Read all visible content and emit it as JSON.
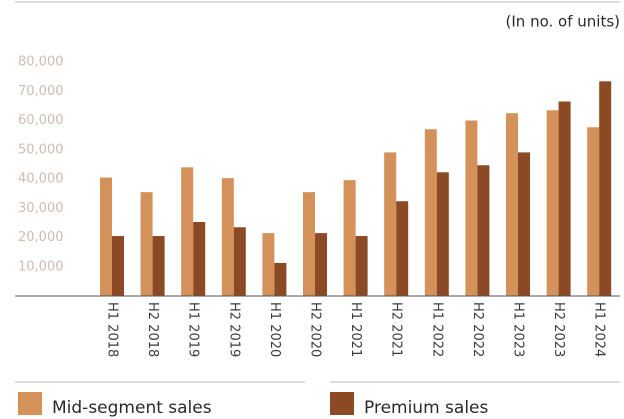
{
  "chart_data": {
    "type": "bar",
    "subtitle": "(In no. of units)",
    "categories": [
      "H1 2018",
      "H2 2018",
      "H1 2019",
      "H2 2019",
      "H1 2020",
      "H2 2020",
      "H1 2021",
      "H2 2021",
      "H1 2022",
      "H2 2022",
      "H1 2023",
      "H2 2023",
      "H1 2024"
    ],
    "series": [
      {
        "name": "Mid-segment sales",
        "color": "#d4915a",
        "values": [
          40500,
          35500,
          44000,
          40300,
          21500,
          35500,
          39600,
          49100,
          57000,
          60000,
          62500,
          63500,
          57700
        ]
      },
      {
        "name": "Premium sales",
        "color": "#8b4a24",
        "values": [
          20500,
          20500,
          25300,
          23500,
          11300,
          21500,
          20500,
          32400,
          42300,
          44700,
          49100,
          66500,
          73400
        ]
      }
    ],
    "ylim": [
      0,
      80000
    ],
    "yticks": [
      {
        "value": 10000,
        "label": "10,000"
      },
      {
        "value": 20000,
        "label": "20,000"
      },
      {
        "value": 30000,
        "label": "30,000"
      },
      {
        "value": 40000,
        "label": "40,000"
      },
      {
        "value": 50000,
        "label": "50,000"
      },
      {
        "value": 60000,
        "label": "60,000"
      },
      {
        "value": 70000,
        "label": "70,000"
      },
      {
        "value": 80000,
        "label": "80,000"
      }
    ]
  }
}
